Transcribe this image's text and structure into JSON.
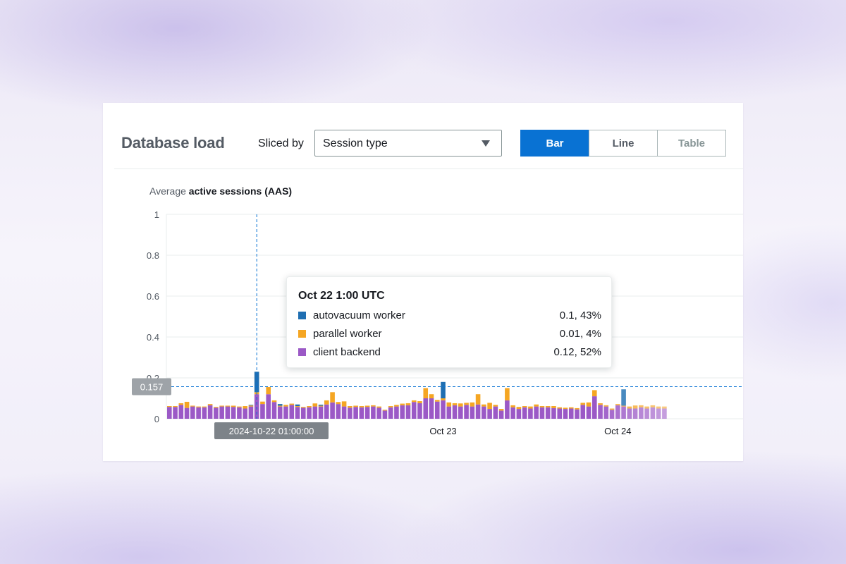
{
  "panel": {
    "title": "Database load",
    "sliced_by_label": "Sliced by",
    "sliced_by_value": "Session type",
    "view_buttons": [
      {
        "label": "Bar",
        "active": true
      },
      {
        "label": "Line",
        "active": false
      },
      {
        "label": "Table",
        "active": false
      }
    ]
  },
  "chart_data": {
    "type": "bar",
    "stacked": true,
    "subtitle_prefix": "Average",
    "subtitle_main": "active sessions (AAS)",
    "y_ticks": [
      "1",
      "0.8",
      "0.6",
      "0.4",
      "0.2",
      "0"
    ],
    "ylim": [
      0,
      1
    ],
    "x_tick_labels": [
      "Oct 23",
      "Oct 24"
    ],
    "hover_x_label": "2024-10-22 01:00:00",
    "threshold_label": "0.157",
    "threshold_value": 0.157,
    "grid": true,
    "series": [
      {
        "name": "autovacuum worker",
        "color": "#1f6fb2"
      },
      {
        "name": "parallel worker",
        "color": "#f5a623"
      },
      {
        "name": "client backend",
        "color": "#9b59c6"
      }
    ],
    "bars": [
      [
        0.0,
        0.004,
        0.058
      ],
      [
        0.0,
        0.004,
        0.058
      ],
      [
        0.0,
        0.008,
        0.068
      ],
      [
        0.0,
        0.03,
        0.053
      ],
      [
        0.0,
        0.004,
        0.06
      ],
      [
        0.0,
        0.004,
        0.056
      ],
      [
        0.0,
        0.004,
        0.056
      ],
      [
        0.0,
        0.006,
        0.066
      ],
      [
        0.0,
        0.004,
        0.054
      ],
      [
        0.0,
        0.004,
        0.06
      ],
      [
        0.0,
        0.004,
        0.06
      ],
      [
        0.0,
        0.006,
        0.058
      ],
      [
        0.0,
        0.004,
        0.056
      ],
      [
        0.0,
        0.012,
        0.05
      ],
      [
        0.003,
        0.005,
        0.06
      ],
      [
        0.1,
        0.01,
        0.12
      ],
      [
        0.0,
        0.012,
        0.072
      ],
      [
        0.0,
        0.035,
        0.12
      ],
      [
        0.0,
        0.008,
        0.082
      ],
      [
        0.008,
        0.004,
        0.06
      ],
      [
        0.0,
        0.008,
        0.06
      ],
      [
        0.0,
        0.006,
        0.068
      ],
      [
        0.008,
        0.004,
        0.058
      ],
      [
        0.0,
        0.004,
        0.054
      ],
      [
        0.0,
        0.006,
        0.056
      ],
      [
        0.0,
        0.015,
        0.06
      ],
      [
        0.005,
        0.004,
        0.06
      ],
      [
        0.0,
        0.02,
        0.07
      ],
      [
        0.0,
        0.05,
        0.08
      ],
      [
        0.0,
        0.01,
        0.072
      ],
      [
        0.0,
        0.025,
        0.06
      ],
      [
        0.0,
        0.008,
        0.054
      ],
      [
        0.0,
        0.006,
        0.058
      ],
      [
        0.0,
        0.006,
        0.056
      ],
      [
        0.0,
        0.006,
        0.058
      ],
      [
        0.0,
        0.006,
        0.06
      ],
      [
        0.0,
        0.006,
        0.054
      ],
      [
        0.0,
        0.004,
        0.04
      ],
      [
        0.0,
        0.006,
        0.056
      ],
      [
        0.0,
        0.008,
        0.06
      ],
      [
        0.0,
        0.008,
        0.066
      ],
      [
        0.0,
        0.01,
        0.066
      ],
      [
        0.0,
        0.008,
        0.082
      ],
      [
        0.0,
        0.01,
        0.076
      ],
      [
        0.0,
        0.05,
        0.1
      ],
      [
        0.0,
        0.02,
        0.1
      ],
      [
        0.0,
        0.008,
        0.084
      ],
      [
        0.08,
        0.01,
        0.09
      ],
      [
        0.0,
        0.02,
        0.06
      ],
      [
        0.0,
        0.01,
        0.066
      ],
      [
        0.0,
        0.015,
        0.06
      ],
      [
        0.0,
        0.01,
        0.068
      ],
      [
        0.0,
        0.02,
        0.06
      ],
      [
        0.0,
        0.05,
        0.07
      ],
      [
        0.0,
        0.01,
        0.06
      ],
      [
        0.0,
        0.03,
        0.048
      ],
      [
        0.0,
        0.008,
        0.06
      ],
      [
        0.0,
        0.008,
        0.04
      ],
      [
        0.0,
        0.06,
        0.09
      ],
      [
        0.0,
        0.01,
        0.056
      ],
      [
        0.0,
        0.01,
        0.048
      ],
      [
        0.0,
        0.006,
        0.056
      ],
      [
        0.0,
        0.01,
        0.05
      ],
      [
        0.0,
        0.01,
        0.06
      ],
      [
        0.0,
        0.006,
        0.056
      ],
      [
        0.0,
        0.006,
        0.056
      ],
      [
        0.0,
        0.01,
        0.052
      ],
      [
        0.0,
        0.006,
        0.05
      ],
      [
        0.0,
        0.006,
        0.048
      ],
      [
        0.0,
        0.006,
        0.05
      ],
      [
        0.0,
        0.006,
        0.046
      ],
      [
        0.0,
        0.01,
        0.068
      ],
      [
        0.0,
        0.02,
        0.06
      ],
      [
        0.0,
        0.03,
        0.11
      ],
      [
        0.0,
        0.008,
        0.068
      ],
      [
        0.0,
        0.006,
        0.06
      ],
      [
        0.0,
        0.006,
        0.044
      ],
      [
        0.0,
        0.006,
        0.066
      ],
      [
        0.08,
        0.004,
        0.06
      ],
      [
        0.0,
        0.01,
        0.05
      ],
      [
        0.0,
        0.015,
        0.05
      ],
      [
        0.0,
        0.01,
        0.056
      ],
      [
        0.0,
        0.01,
        0.05
      ],
      [
        0.0,
        0.01,
        0.056
      ],
      [
        0.0,
        0.01,
        0.05
      ],
      [
        0.0,
        0.01,
        0.05
      ]
    ]
  },
  "tooltip": {
    "title": "Oct 22 1:00 UTC",
    "rows": [
      {
        "name": "autovacuum worker",
        "value": "0.1, 43%",
        "color": "#1f6fb2"
      },
      {
        "name": "parallel worker",
        "value": "0.01, 4%",
        "color": "#f5a623"
      },
      {
        "name": "client backend",
        "value": "0.12, 52%",
        "color": "#9b59c6"
      }
    ]
  }
}
